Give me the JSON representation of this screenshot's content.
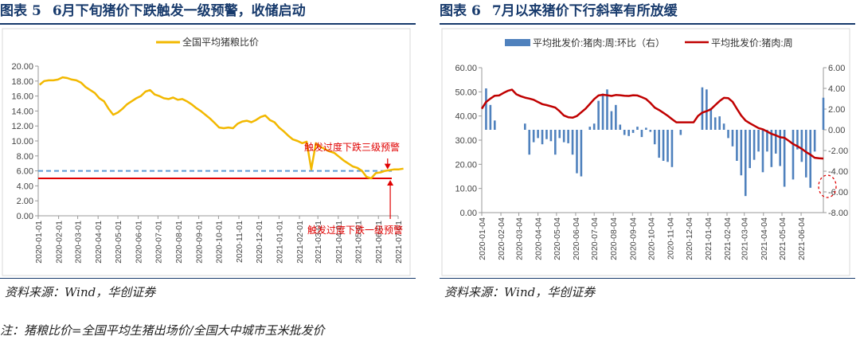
{
  "figure5": {
    "title_label": "图表",
    "title_number": "5",
    "title_text": "6月下旬猪价下跌触发一级预警，收储启动",
    "source": "资料来源：Wind，华创证券",
    "chart_data": {
      "type": "line",
      "series": [
        {
          "name": "全国平均猪粮比价",
          "color": "#f2b800",
          "x": [
            "2020-01-03",
            "2020-01-10",
            "2020-01-17",
            "2020-01-24",
            "2020-01-31",
            "2020-02-07",
            "2020-02-14",
            "2020-02-21",
            "2020-02-28",
            "2020-03-06",
            "2020-03-13",
            "2020-03-20",
            "2020-03-27",
            "2020-04-03",
            "2020-04-10",
            "2020-04-17",
            "2020-04-24",
            "2020-05-01",
            "2020-05-08",
            "2020-05-15",
            "2020-05-22",
            "2020-05-29",
            "2020-06-05",
            "2020-06-12",
            "2020-06-19",
            "2020-06-26",
            "2020-07-03",
            "2020-07-10",
            "2020-07-17",
            "2020-07-24",
            "2020-07-31",
            "2020-08-07",
            "2020-08-14",
            "2020-08-21",
            "2020-08-28",
            "2020-09-04",
            "2020-09-11",
            "2020-09-18",
            "2020-09-25",
            "2020-10-02",
            "2020-10-09",
            "2020-10-16",
            "2020-10-23",
            "2020-10-30",
            "2020-11-06",
            "2020-11-13",
            "2020-11-20",
            "2020-11-27",
            "2020-12-04",
            "2020-12-11",
            "2020-12-18",
            "2020-12-25",
            "2021-01-01",
            "2021-01-08",
            "2021-01-15",
            "2021-01-22",
            "2021-01-29",
            "2021-02-05",
            "2021-02-12",
            "2021-02-19",
            "2021-02-26",
            "2021-03-05",
            "2021-03-12",
            "2021-03-16",
            "2021-03-19",
            "2021-03-26",
            "2021-04-02",
            "2021-04-09",
            "2021-04-16",
            "2021-04-23",
            "2021-04-30",
            "2021-05-07",
            "2021-05-14",
            "2021-05-21",
            "2021-05-28",
            "2021-06-04",
            "2021-06-11",
            "2021-06-18",
            "2021-06-25",
            "2021-07-02",
            "2021-07-09"
          ],
          "values": [
            17.5,
            18.0,
            18.1,
            18.1,
            18.2,
            18.5,
            18.4,
            18.2,
            18.1,
            17.8,
            17.2,
            16.8,
            16.4,
            15.7,
            15.3,
            14.3,
            13.5,
            13.8,
            14.3,
            14.9,
            15.3,
            15.7,
            16.0,
            16.6,
            16.8,
            16.2,
            16.0,
            15.7,
            15.6,
            15.8,
            15.5,
            15.6,
            15.3,
            14.9,
            14.4,
            14.0,
            13.5,
            13.0,
            12.4,
            11.8,
            11.7,
            11.8,
            11.7,
            12.3,
            12.6,
            12.7,
            12.5,
            12.8,
            13.2,
            13.4,
            12.8,
            12.5,
            11.8,
            11.3,
            10.7,
            10.2,
            10.0,
            9.7,
            9.9,
            6.2,
            9.7,
            9.2,
            8.9,
            8.7,
            8.6,
            8.4,
            7.9,
            7.4,
            7.0,
            6.6,
            6.4,
            6.0,
            5.2,
            5.0,
            5.7,
            5.8,
            6.0,
            6.1,
            6.2,
            6.2,
            6.3
          ]
        }
      ],
      "ylim": [
        0,
        20
      ],
      "yticks": [
        "0.00",
        "2.00",
        "4.00",
        "6.00",
        "8.00",
        "10.00",
        "12.00",
        "14.00",
        "16.00",
        "18.00",
        "20.00"
      ],
      "xticks": [
        "2020-01-01",
        "2020-02-01",
        "2020-03-01",
        "2020-04-01",
        "2020-05-01",
        "2020-06-01",
        "2020-07-01",
        "2020-08-01",
        "2020-09-01",
        "2020-10-01",
        "2020-11-01",
        "2020-12-01",
        "2021-01-01",
        "2021-02-01",
        "2021-03-01",
        "2021-04-01",
        "2021-05-01",
        "2021-06-01",
        "2021-07-01"
      ],
      "reference_lines": [
        {
          "value": 6,
          "color": "#5b9bd5",
          "style": "dashed",
          "label": "触发过度下跌三级预警"
        },
        {
          "value": 5,
          "color": "#e00000",
          "style": "solid",
          "label": "触发过度下跌一级预警"
        }
      ],
      "grid": false,
      "legend_position": "top-center"
    }
  },
  "figure6": {
    "title_label": "图表",
    "title_number": "6",
    "title_text": "7月以来猪价下行斜率有所放缓",
    "source": "资料来源：Wind，华创证券",
    "chart_data": {
      "type": "bar",
      "x": [
        "2020-01-04",
        "2020-01-11",
        "2020-01-18",
        "2020-01-25",
        "2020-02-01",
        "2020-02-08",
        "2020-02-15",
        "2020-02-22",
        "2020-02-29",
        "2020-03-07",
        "2020-03-14",
        "2020-03-21",
        "2020-03-28",
        "2020-04-04",
        "2020-04-11",
        "2020-04-18",
        "2020-04-25",
        "2020-05-02",
        "2020-05-09",
        "2020-05-16",
        "2020-05-23",
        "2020-05-30",
        "2020-06-06",
        "2020-06-13",
        "2020-06-20",
        "2020-06-27",
        "2020-07-04",
        "2020-07-11",
        "2020-07-18",
        "2020-07-25",
        "2020-08-01",
        "2020-08-08",
        "2020-08-15",
        "2020-08-22",
        "2020-08-29",
        "2020-09-05",
        "2020-09-12",
        "2020-09-19",
        "2020-09-26",
        "2020-10-03",
        "2020-10-10",
        "2020-10-17",
        "2020-10-24",
        "2020-10-31",
        "2020-11-07",
        "2020-11-14",
        "2020-11-21",
        "2020-11-28",
        "2020-12-05",
        "2020-12-12",
        "2020-12-19",
        "2020-12-26",
        "2021-01-02",
        "2021-01-09",
        "2021-01-16",
        "2021-01-23",
        "2021-01-30",
        "2021-02-06",
        "2021-02-13",
        "2021-02-20",
        "2021-02-27",
        "2021-03-06",
        "2021-03-13",
        "2021-03-20",
        "2021-03-27",
        "2021-04-03",
        "2021-04-10",
        "2021-04-17",
        "2021-04-24",
        "2021-05-01",
        "2021-05-08",
        "2021-05-15",
        "2021-05-22",
        "2021-05-29",
        "2021-06-05",
        "2021-06-12",
        "2021-06-19",
        "2021-06-26",
        "2021-07-03",
        "2021-07-10"
      ],
      "series": [
        {
          "name": "平均批发价:猪肉:周:环比（右）",
          "type": "bar",
          "axis": "right",
          "color": "#4f81bd",
          "values": [
            0.0,
            4.0,
            2.4,
            0.9,
            0.0,
            0.0,
            0.0,
            0.0,
            0.0,
            0.0,
            0.6,
            -2.4,
            -1.2,
            -0.8,
            -1.4,
            -0.9,
            -1.1,
            -2.4,
            -0.8,
            -1.2,
            -1.3,
            -2.4,
            -4.2,
            -4.5,
            0.0,
            0.3,
            0.6,
            2.8,
            3.5,
            3.9,
            1.8,
            2.4,
            0.5,
            -0.5,
            -0.6,
            -0.3,
            0.3,
            -0.7,
            0.2,
            -0.2,
            -1.4,
            -2.7,
            -3.0,
            -3.1,
            -3.6,
            0.0,
            -0.5,
            0.0,
            0.0,
            0.0,
            0.0,
            4.1,
            3.9,
            2.1,
            1.2,
            1.3,
            0.6,
            -0.8,
            -1.6,
            -3.0,
            -4.4,
            -6.4,
            -3.7,
            -2.9,
            -2.1,
            -4.1,
            -2.1,
            -3.6,
            -2.3,
            -3.5,
            -5.5,
            0.0,
            -4.8,
            -1.9,
            -3.1,
            -4.6,
            -5.6,
            -2.1,
            0.0,
            3.1
          ]
        },
        {
          "name": "平均批发价:猪肉:周",
          "type": "line",
          "axis": "left",
          "color": "#c00000",
          "values": [
            43.0,
            45.8,
            47.2,
            48.4,
            48.5,
            49.5,
            50.4,
            50.9,
            49.0,
            48.2,
            47.6,
            47.2,
            46.7,
            45.8,
            44.9,
            44.5,
            44.0,
            43.5,
            42.0,
            40.2,
            39.5,
            39.3,
            40.0,
            41.5,
            43.0,
            45.0,
            47.0,
            48.5,
            48.8,
            48.6,
            48.3,
            48.7,
            48.6,
            48.4,
            48.3,
            48.6,
            48.5,
            47.8,
            47.0,
            45.4,
            43.5,
            42.5,
            41.3,
            40.1,
            38.7,
            37.4,
            37.4,
            37.4,
            37.4,
            37.4,
            40.0,
            41.4,
            42.0,
            42.8,
            44.5,
            46.2,
            47.5,
            47.4,
            45.9,
            43.0,
            40.2,
            38.1,
            37.0,
            36.0,
            35.0,
            34.5,
            33.6,
            32.6,
            32.0,
            31.2,
            31.0,
            29.7,
            28.4,
            27.5,
            26.4,
            25.1,
            24.0,
            22.7,
            22.5,
            22.4
          ]
        }
      ],
      "ylim_left": [
        0,
        60
      ],
      "ylim_right": [
        -8,
        6
      ],
      "yticks_left": [
        "0.00",
        "10.00",
        "20.00",
        "30.00",
        "40.00",
        "50.00",
        "60.00"
      ],
      "yticks_right": [
        "-8.00",
        "-6.00",
        "-4.00",
        "-2.00",
        "0.00",
        "2.00",
        "4.00",
        "6.00"
      ],
      "xticks": [
        "2020-01-04",
        "2020-02-04",
        "2020-03-04",
        "2020-04-04",
        "2020-05-04",
        "2020-06-04",
        "2020-07-04",
        "2020-08-04",
        "2020-09-04",
        "2020-10-04",
        "2020-11-04",
        "2020-12-04",
        "2021-01-04",
        "2021-02-04",
        "2021-03-04",
        "2021-04-04",
        "2021-05-04",
        "2021-06-04"
      ],
      "grid": false,
      "legend_position": "top-center"
    }
  },
  "note": "注：猪粮比价=全国平均生猪出场价/全国大中城市玉米批发价"
}
